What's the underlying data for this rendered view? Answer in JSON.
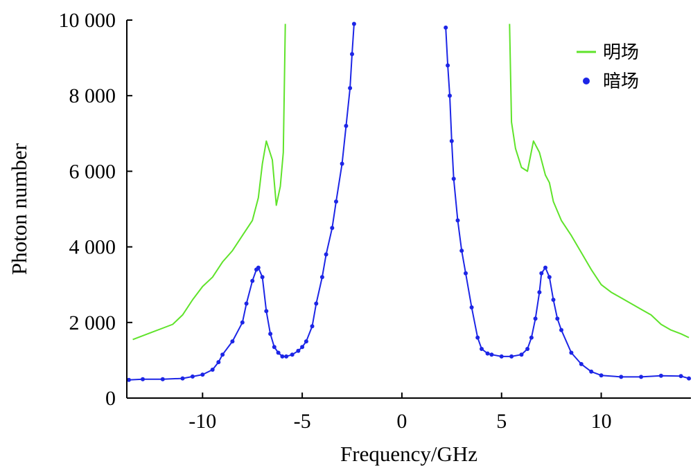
{
  "chart_data": {
    "type": "line",
    "title": "",
    "xlabel": "Frequency/GHz",
    "ylabel": "Photon number",
    "xlim": [
      -13.8,
      14.5
    ],
    "ylim": [
      0,
      10000
    ],
    "x_ticks": [
      -10,
      -5,
      0,
      5,
      10
    ],
    "x_tick_labels": [
      "-10",
      "-5",
      "0",
      "5",
      "10"
    ],
    "y_ticks": [
      0,
      2000,
      4000,
      6000,
      8000,
      10000
    ],
    "y_tick_labels": [
      "0",
      "2 000",
      "4 000",
      "6 000",
      "8 000",
      "10 000"
    ],
    "grid": false,
    "legend_position": "top-right",
    "series": [
      {
        "name": "明场",
        "color": "#5fe32a",
        "marker": "none",
        "segments": [
          {
            "x": [
              -13.5,
              -13,
              -12.5,
              -12,
              -11.5,
              -11,
              -10.5,
              -10,
              -9.5,
              -9,
              -8.5,
              -8,
              -7.5,
              -7.2,
              -7,
              -6.8,
              -6.5,
              -6.3,
              -6.1,
              -5.95,
              -5.85
            ],
            "y": [
              1550,
              1650,
              1750,
              1850,
              1950,
              2200,
              2600,
              2950,
              3200,
              3600,
              3900,
              4300,
              4700,
              5300,
              6200,
              6800,
              6300,
              5100,
              5600,
              6500,
              9900
            ]
          },
          {
            "x": [
              5.4,
              5.5,
              5.7,
              6.0,
              6.3,
              6.6,
              6.9,
              7.2,
              7.4,
              7.6,
              8.0,
              8.5,
              9.0,
              9.5,
              10,
              10.5,
              11,
              11.5,
              12,
              12.5,
              13,
              13.5,
              14,
              14.4
            ],
            "y": [
              9900,
              7300,
              6600,
              6100,
              6000,
              6800,
              6500,
              5900,
              5700,
              5200,
              4700,
              4300,
              3850,
              3400,
              3000,
              2800,
              2650,
              2500,
              2350,
              2200,
              1950,
              1800,
              1700,
              1600
            ]
          }
        ]
      },
      {
        "name": "暗场",
        "color": "#1c25e6",
        "marker": "dot",
        "segments": [
          {
            "x": [
              -13.7,
              -13,
              -12,
              -11,
              -10.5,
              -10,
              -9.5,
              -9.2,
              -9,
              -8.5,
              -8,
              -7.8,
              -7.5,
              -7.3,
              -7.2,
              -7.0,
              -6.8,
              -6.6,
              -6.4,
              -6.2,
              -6.0,
              -5.8,
              -5.5,
              -5.2,
              -5.0,
              -4.8,
              -4.5,
              -4.3,
              -4.0,
              -3.8,
              -3.5,
              -3.3,
              -3.0,
              -2.8,
              -2.6,
              -2.5,
              -2.4
            ],
            "y": [
              480,
              500,
              500,
              520,
              570,
              620,
              750,
              950,
              1150,
              1500,
              2000,
              2500,
              3100,
              3400,
              3450,
              3200,
              2300,
              1700,
              1350,
              1200,
              1100,
              1100,
              1150,
              1250,
              1350,
              1500,
              1900,
              2500,
              3200,
              3800,
              4500,
              5200,
              6200,
              7200,
              8200,
              9100,
              9900
            ]
          },
          {
            "x": [
              2.2,
              2.3,
              2.4,
              2.5,
              2.6,
              2.8,
              3.0,
              3.2,
              3.5,
              3.8,
              4.0,
              4.3,
              4.5,
              5.0,
              5.5,
              6.0,
              6.3,
              6.5,
              6.7,
              6.9,
              7.0,
              7.2,
              7.4,
              7.6,
              7.8,
              8.0,
              8.5,
              9.0,
              9.5,
              10,
              11,
              12,
              13,
              14,
              14.4
            ],
            "y": [
              9800,
              8800,
              8000,
              6800,
              5800,
              4700,
              3900,
              3300,
              2400,
              1600,
              1300,
              1180,
              1150,
              1100,
              1100,
              1150,
              1300,
              1600,
              2100,
              2800,
              3300,
              3450,
              3200,
              2600,
              2100,
              1800,
              1200,
              900,
              700,
              600,
              560,
              560,
              590,
              580,
              520
            ]
          }
        ]
      }
    ]
  }
}
